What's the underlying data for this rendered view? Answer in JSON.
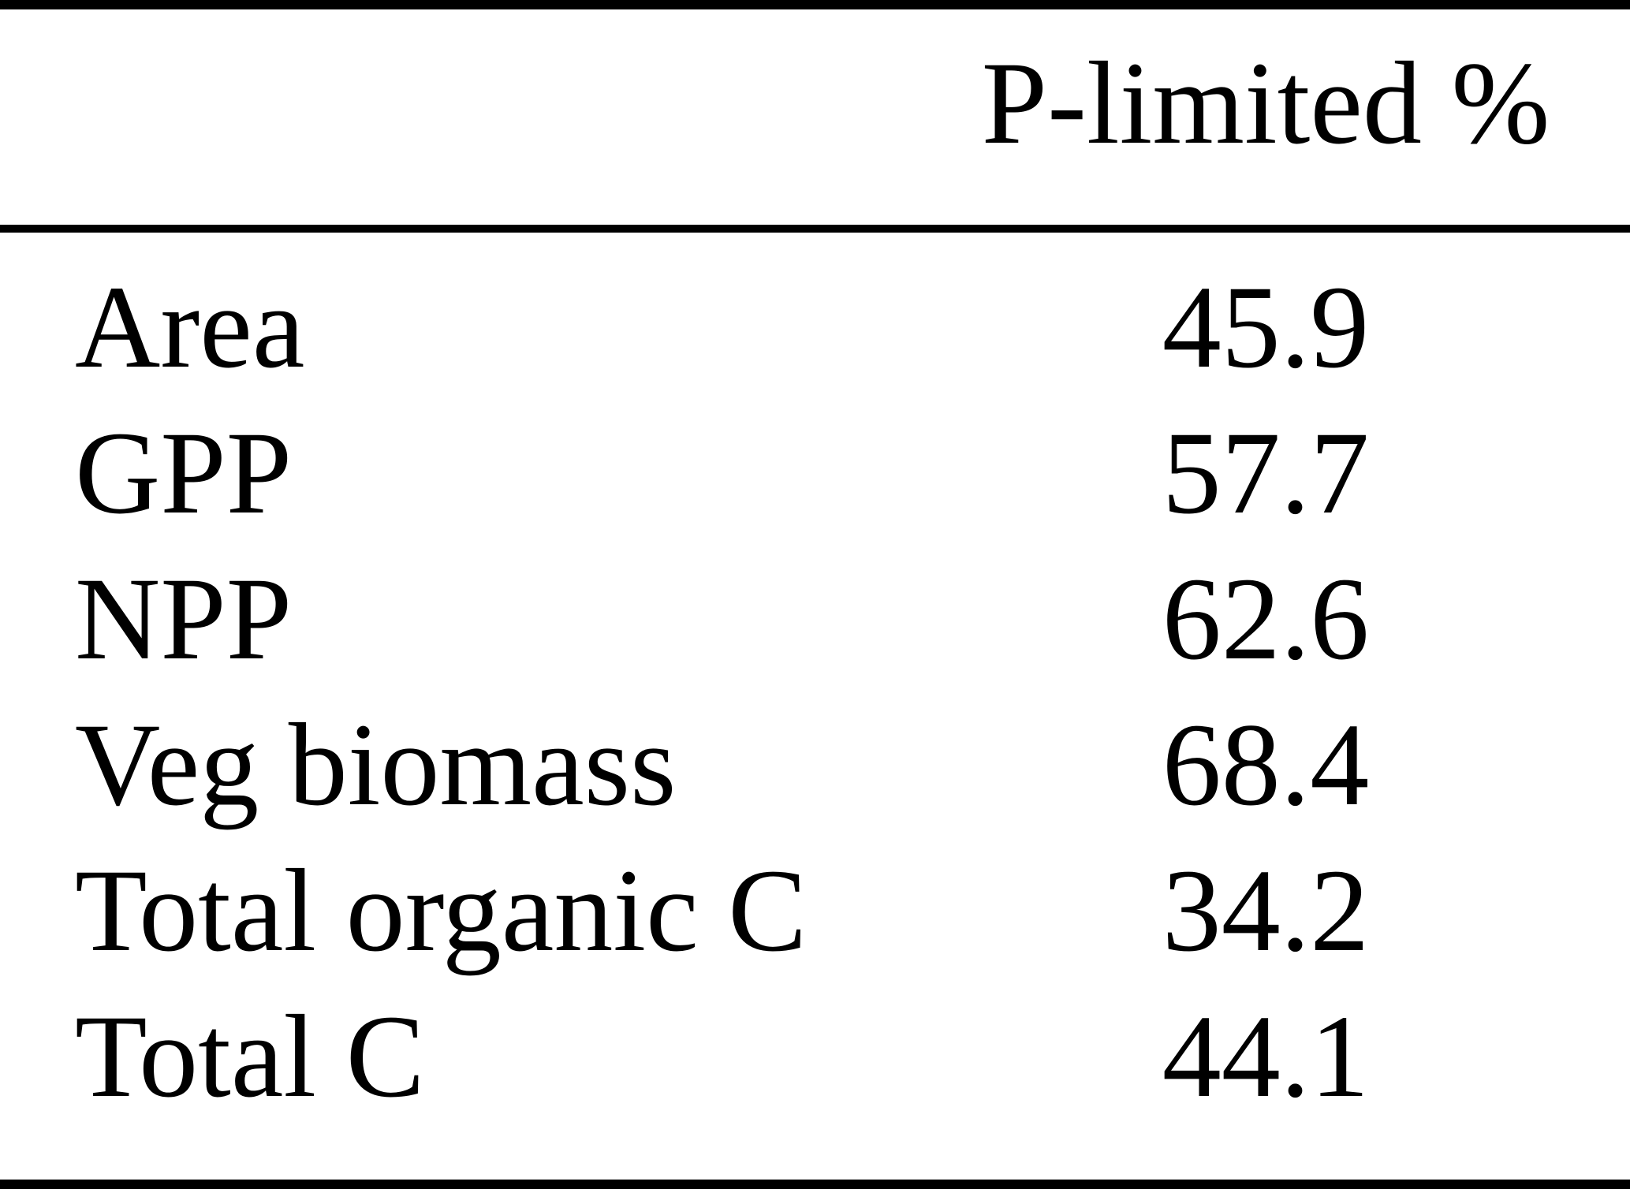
{
  "table": {
    "header": {
      "value_column_label": "P-limited %"
    },
    "rows": [
      {
        "label": "Area",
        "value": "45.9"
      },
      {
        "label": "GPP",
        "value": "57.7"
      },
      {
        "label": "NPP",
        "value": "62.6"
      },
      {
        "label": "Veg biomass",
        "value": "68.4"
      },
      {
        "label": "Total organic C",
        "value": "34.2"
      },
      {
        "label": "Total C",
        "value": "44.1"
      }
    ]
  },
  "chart_data": {
    "type": "table",
    "columns": [
      "",
      "P-limited %"
    ],
    "categories": [
      "Area",
      "GPP",
      "NPP",
      "Veg biomass",
      "Total organic C",
      "Total C"
    ],
    "values": [
      45.9,
      57.7,
      62.6,
      68.4,
      34.2,
      44.1
    ],
    "title": "",
    "unit": "%"
  },
  "colors": {
    "text": "#000000",
    "background": "#ffffff",
    "rule": "#000000"
  }
}
